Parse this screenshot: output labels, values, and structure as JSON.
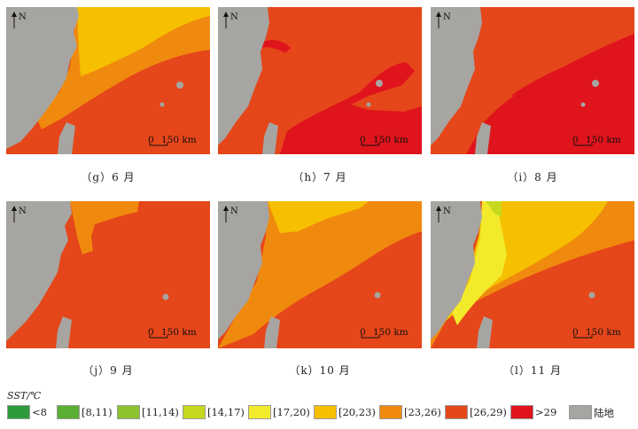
{
  "panels": [
    {
      "id": "g",
      "caption": "（g）6 月"
    },
    {
      "id": "h",
      "caption": "（h）7 月"
    },
    {
      "id": "i",
      "caption": "（i）8 月"
    },
    {
      "id": "j",
      "caption": "（j）9 月"
    },
    {
      "id": "k",
      "caption": "（k）10 月"
    },
    {
      "id": "l",
      "caption": "（l）11 月"
    }
  ],
  "map_labels": {
    "north": "N",
    "scale_zero": "0",
    "scale_label": "150 km"
  },
  "legend": {
    "title": "SST/℃",
    "items": [
      {
        "label": "<8",
        "color": "#2e9b3a"
      },
      {
        "label": "[8,11)",
        "color": "#5aae33"
      },
      {
        "label": "[11,14)",
        "color": "#8cc22e"
      },
      {
        "label": "[14,17)",
        "color": "#c6d91f"
      },
      {
        "label": "[17,20)",
        "color": "#f3ea2c"
      },
      {
        "label": "[20,23)",
        "color": "#f6c000"
      },
      {
        "label": "[23,26)",
        "color": "#f08a0e"
      },
      {
        "label": "[26,29)",
        "color": "#e5461a"
      },
      {
        "label": ">29",
        "color": "#e0141c"
      },
      {
        "label": "陆地",
        "color": "#a7a5a1"
      }
    ]
  }
}
